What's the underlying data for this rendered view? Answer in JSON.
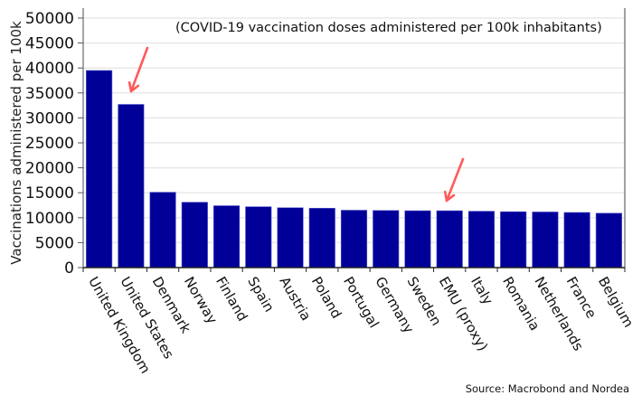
{
  "chart_data": {
    "type": "bar",
    "title": "",
    "annotation": "(COVID-19 vaccination doses administered per 100k inhabitants)",
    "xlabel": "",
    "ylabel": "Vaccinations administered per 100k",
    "ylim": [
      0,
      50000
    ],
    "yticks": [
      0,
      5000,
      10000,
      15000,
      20000,
      25000,
      30000,
      35000,
      40000,
      45000,
      50000
    ],
    "ytick_labels": [
      "0",
      "5000",
      "10000",
      "15000",
      "20000",
      "25000",
      "30000",
      "35000",
      "40000",
      "45000",
      "50000"
    ],
    "grid": true,
    "categories": [
      "United Kingdom",
      "United States",
      "Denmark",
      "Norway",
      "Finland",
      "Spain",
      "Austria",
      "Poland",
      "Portugal",
      "Germany",
      "Sweden",
      "EMU (proxy)",
      "Italy",
      "Romania",
      "Netherlands",
      "France",
      "Belgium"
    ],
    "values": [
      39500,
      32700,
      15100,
      13100,
      12400,
      12200,
      12000,
      11900,
      11500,
      11450,
      11400,
      11400,
      11300,
      11200,
      11150,
      11050,
      10900
    ],
    "bar_color": "#000099",
    "highlighted_categories": [
      "United States",
      "EMU (proxy)"
    ],
    "arrow_color": "#FF5A5A",
    "source": "Source: Macrobond and Nordea"
  }
}
